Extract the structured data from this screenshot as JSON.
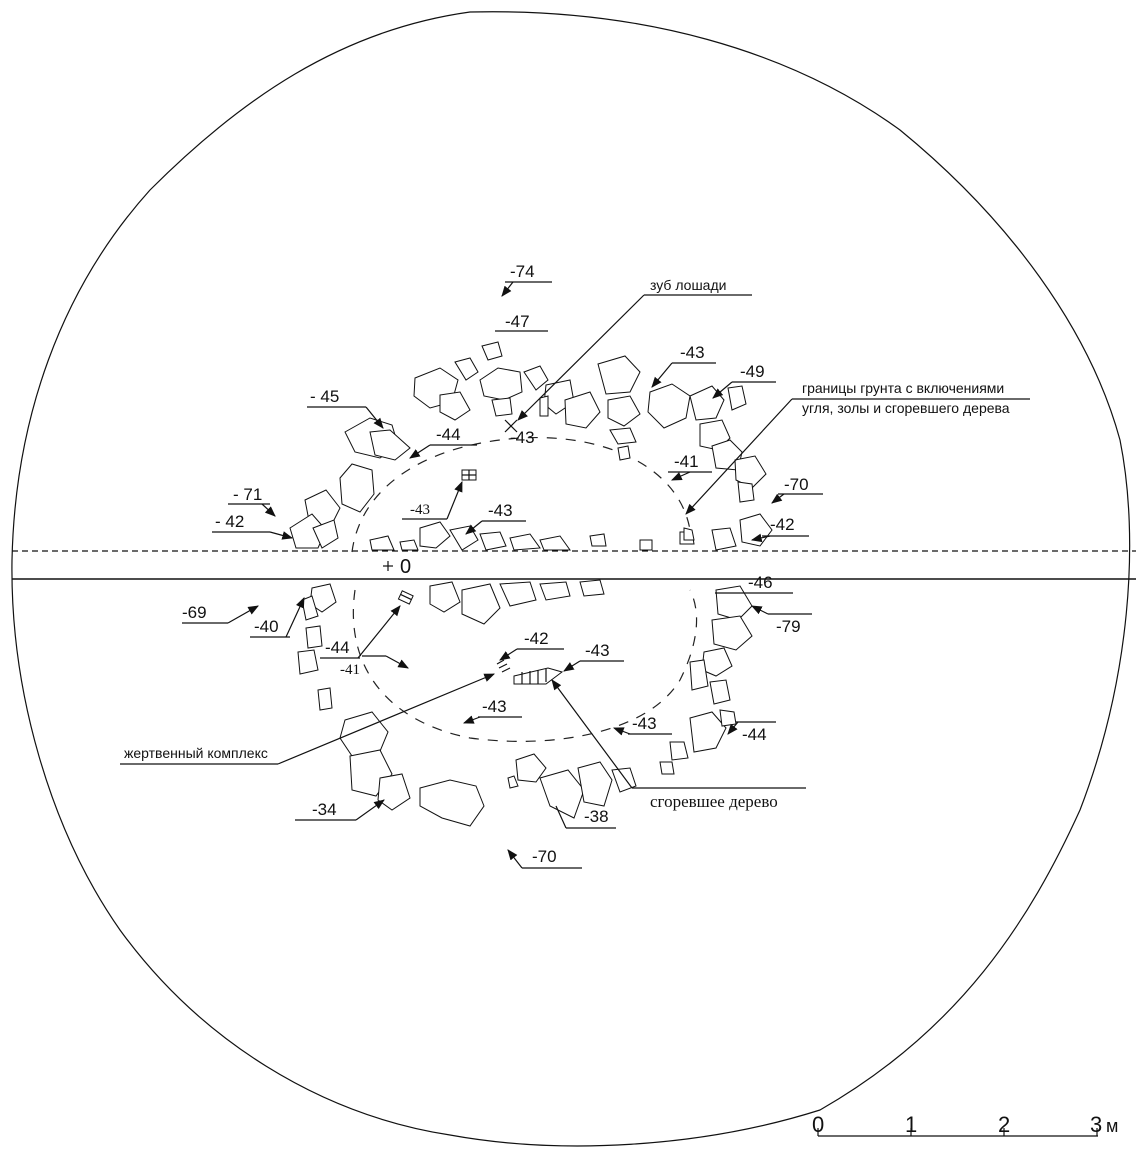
{
  "labels": {
    "horse_tooth": "зуб лошади",
    "soil_boundary_1": "границы грунта с включениями",
    "soil_boundary_2": "угля, золы и сгоревшего дерева",
    "sacrificial_complex": "жертвенный комплекс",
    "burnt_wood": "сгоревшее дерево",
    "datum": "0"
  },
  "depths": [
    {
      "id": "d74",
      "text": "-74"
    },
    {
      "id": "d47",
      "text": "-47"
    },
    {
      "id": "d43a",
      "text": "-43"
    },
    {
      "id": "d49",
      "text": "-49"
    },
    {
      "id": "d45",
      "text": "- 45"
    },
    {
      "id": "d44a",
      "text": "-44"
    },
    {
      "id": "d43b",
      "text": "-43"
    },
    {
      "id": "d41a",
      "text": "-41"
    },
    {
      "id": "d70a",
      "text": "-70"
    },
    {
      "id": "d71",
      "text": "- 71"
    },
    {
      "id": "d42a",
      "text": "- 42"
    },
    {
      "id": "d43c",
      "text": "-43"
    },
    {
      "id": "d43d",
      "text": "-43"
    },
    {
      "id": "d42b",
      "text": "-42"
    },
    {
      "id": "d46",
      "text": "-46"
    },
    {
      "id": "d69",
      "text": "-69"
    },
    {
      "id": "d40",
      "text": "-40"
    },
    {
      "id": "d79",
      "text": "-79"
    },
    {
      "id": "d44b",
      "text": "-44"
    },
    {
      "id": "d41b",
      "text": "-41"
    },
    {
      "id": "d42c",
      "text": "-42"
    },
    {
      "id": "d43e",
      "text": "-43"
    },
    {
      "id": "d43f",
      "text": "-43"
    },
    {
      "id": "d43g",
      "text": "-43"
    },
    {
      "id": "d44c",
      "text": "-44"
    },
    {
      "id": "d34",
      "text": "-34"
    },
    {
      "id": "d38",
      "text": "-38"
    },
    {
      "id": "d70b",
      "text": "-70"
    }
  ],
  "scale": {
    "ticks": [
      "0",
      "1",
      "2",
      "3"
    ],
    "unit": "м"
  }
}
